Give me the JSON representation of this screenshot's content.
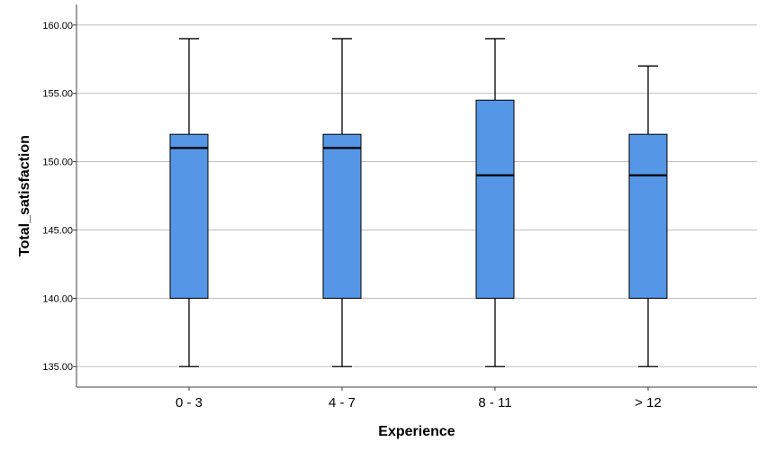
{
  "chart_data": {
    "type": "boxplot",
    "title": "",
    "xlabel": "Experience",
    "ylabel": "Total_satisfaction",
    "ylim": [
      133.5,
      161.5
    ],
    "yticks": [
      135,
      140,
      145,
      150,
      155,
      160
    ],
    "ytick_labels": [
      "135.00",
      "140.00",
      "145.00",
      "150.00",
      "155.00",
      "160.00"
    ],
    "grid": true,
    "categories": [
      "0 - 3",
      "4 - 7",
      "8 - 11",
      "> 12"
    ],
    "boxes": [
      {
        "min": 135,
        "q1": 140,
        "median": 151,
        "q3": 152,
        "max": 159
      },
      {
        "min": 135,
        "q1": 140,
        "median": 151,
        "q3": 152,
        "max": 159
      },
      {
        "min": 135,
        "q1": 140,
        "median": 149,
        "q3": 154.5,
        "max": 159
      },
      {
        "min": 135,
        "q1": 140,
        "median": 149,
        "q3": 152,
        "max": 157
      }
    ],
    "colors": {
      "box_fill": "#5596e6",
      "box_stroke": "#000000",
      "grid": "#bfbfbf",
      "axis": "#404040"
    }
  }
}
